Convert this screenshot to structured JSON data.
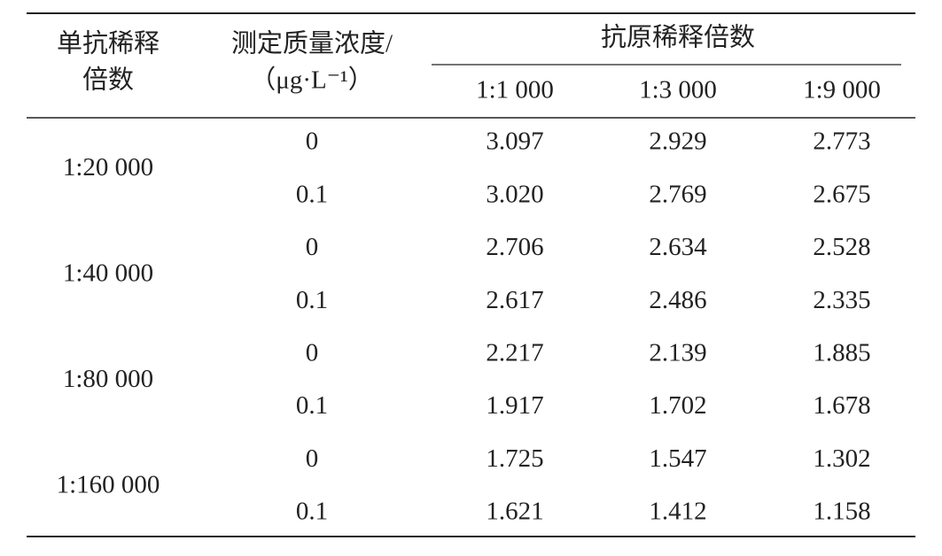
{
  "table": {
    "header": {
      "col0": [
        "单抗稀释",
        "倍数"
      ],
      "col1": [
        "测定质量浓度/",
        "（μg·L⁻¹）"
      ],
      "group": "抗原稀释倍数",
      "sub": [
        "1:1 000",
        "1:3 000",
        "1:9 000"
      ]
    },
    "groups": [
      {
        "label": "1:20 000",
        "rows": [
          [
            "0",
            "3.097",
            "2.929",
            "2.773"
          ],
          [
            "0.1",
            "3.020",
            "2.769",
            "2.675"
          ]
        ]
      },
      {
        "label": "1:40 000",
        "rows": [
          [
            "0",
            "2.706",
            "2.634",
            "2.528"
          ],
          [
            "0.1",
            "2.617",
            "2.486",
            "2.335"
          ]
        ]
      },
      {
        "label": "1:80 000",
        "rows": [
          [
            "0",
            "2.217",
            "2.139",
            "1.885"
          ],
          [
            "0.1",
            "1.917",
            "1.702",
            "1.678"
          ]
        ]
      },
      {
        "label": "1:160 000",
        "rows": [
          [
            "0",
            "1.725",
            "1.547",
            "1.302"
          ],
          [
            "0.1",
            "1.621",
            "1.412",
            "1.158"
          ]
        ]
      }
    ]
  }
}
